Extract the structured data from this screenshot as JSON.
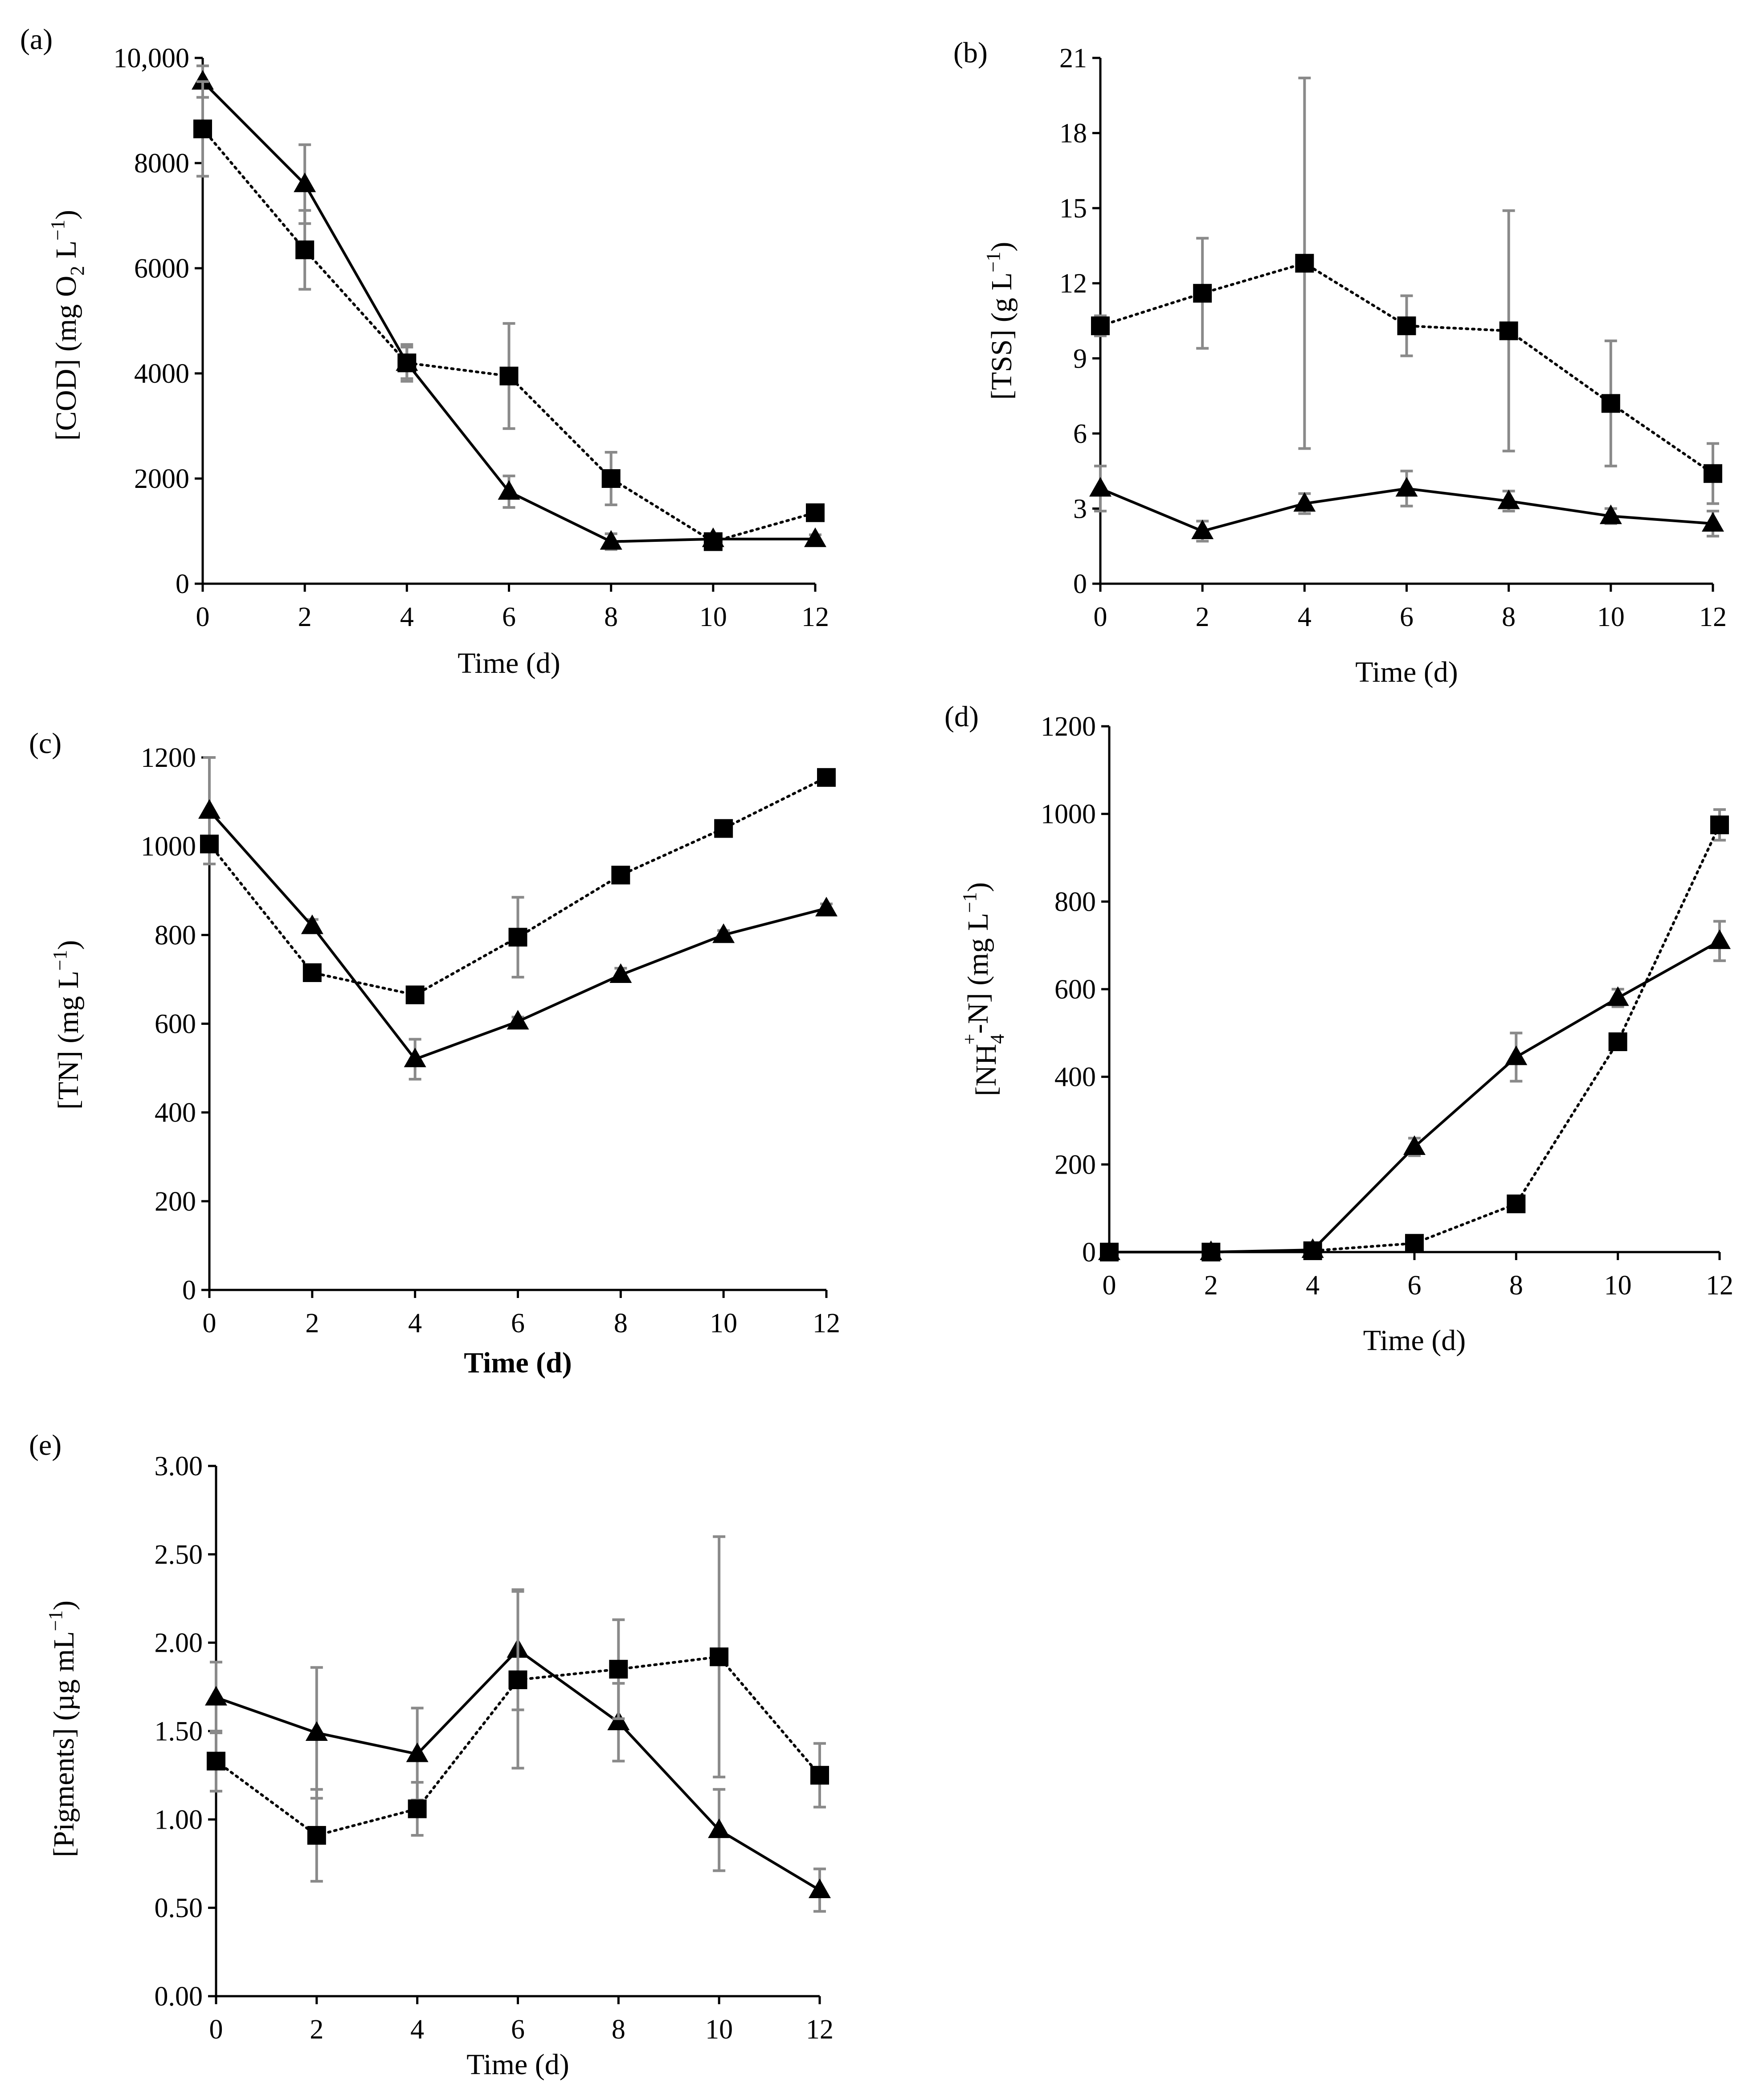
{
  "chart_data": [
    {
      "id": "a",
      "panel_label": "(a)",
      "type": "line",
      "xlabel": "Time (d)",
      "ylabel_parts": [
        "[COD] (mg O",
        "2",
        " L",
        "−1",
        ")"
      ],
      "x": [
        0,
        2,
        4,
        6,
        8,
        10,
        12
      ],
      "xlim": [
        0,
        12
      ],
      "ylim": [
        0,
        10000
      ],
      "yticks": [
        0,
        2000,
        4000,
        6000,
        8000,
        10000
      ],
      "ytick_labels": [
        "0",
        "2000",
        "4000",
        "6000",
        "8000",
        "10,000"
      ],
      "xtick_labels": [
        "0",
        "2",
        "4",
        "6",
        "8",
        "10",
        "12"
      ],
      "series": [
        {
          "name": "triangle",
          "marker": "triangle",
          "line": "solid",
          "values": [
            9550,
            7600,
            4200,
            1750,
            800,
            850,
            850
          ],
          "errors": [
            300,
            750,
            300,
            300,
            150,
            80,
            80
          ]
        },
        {
          "name": "square",
          "marker": "square",
          "line": "dotted",
          "values": [
            8650,
            6350,
            4200,
            3950,
            2000,
            800,
            1350
          ],
          "errors": [
            900,
            750,
            350,
            1000,
            500,
            100,
            100
          ]
        }
      ]
    },
    {
      "id": "b",
      "panel_label": "(b)",
      "type": "line",
      "xlabel": "Time (d)",
      "ylabel_parts": [
        "[TSS] (g L",
        "−1",
        ")"
      ],
      "x": [
        0,
        2,
        4,
        6,
        8,
        10,
        12
      ],
      "xlim": [
        0,
        12
      ],
      "ylim": [
        0,
        21
      ],
      "yticks": [
        0,
        3,
        6,
        9,
        12,
        15,
        18,
        21
      ],
      "ytick_labels": [
        "0",
        "3",
        "6",
        "9",
        "12",
        "15",
        "18",
        "21"
      ],
      "xtick_labels": [
        "0",
        "2",
        "4",
        "6",
        "8",
        "10",
        "12"
      ],
      "series": [
        {
          "name": "triangle",
          "marker": "triangle",
          "line": "solid",
          "values": [
            3.8,
            2.1,
            3.2,
            3.8,
            3.3,
            2.7,
            2.4
          ],
          "errors": [
            0.9,
            0.4,
            0.4,
            0.7,
            0.4,
            0.3,
            0.5
          ]
        },
        {
          "name": "square",
          "marker": "square",
          "line": "dotted",
          "values": [
            10.3,
            11.6,
            12.8,
            10.3,
            10.1,
            7.2,
            4.4
          ],
          "errors": [
            0.4,
            2.2,
            7.4,
            1.2,
            4.8,
            2.5,
            1.2
          ]
        }
      ]
    },
    {
      "id": "c",
      "panel_label": "(c)",
      "type": "line",
      "xlabel": "Time (d)",
      "xlabel_bold": true,
      "ylabel_parts": [
        "[TN] (mg L",
        "−1",
        ")"
      ],
      "x": [
        0,
        2,
        4,
        6,
        8,
        10,
        12
      ],
      "xlim": [
        0,
        12
      ],
      "ylim": [
        0,
        1200
      ],
      "yticks": [
        0,
        200,
        400,
        600,
        800,
        1000,
        1200
      ],
      "ytick_labels": [
        "0",
        "200",
        "400",
        "600",
        "800",
        "1000",
        "1200"
      ],
      "xtick_labels": [
        "0",
        "2",
        "4",
        "6",
        "8",
        "10",
        "12"
      ],
      "series": [
        {
          "name": "triangle",
          "marker": "triangle",
          "line": "solid",
          "values": [
            1080,
            820,
            520,
            605,
            710,
            800,
            860
          ],
          "errors": [
            120,
            15,
            45,
            10,
            15,
            10,
            10
          ]
        },
        {
          "name": "square",
          "marker": "square",
          "line": "dotted",
          "values": [
            1005,
            715,
            665,
            795,
            935,
            1040,
            1155
          ],
          "errors": [
            15,
            10,
            10,
            90,
            10,
            10,
            10
          ]
        }
      ]
    },
    {
      "id": "d",
      "panel_label": "(d)",
      "type": "line",
      "xlabel": "Time (d)",
      "ylabel_parts": [
        "[NH",
        "4",
        "+",
        "-N] (mg L",
        "−1",
        ")"
      ],
      "x": [
        0,
        2,
        4,
        6,
        8,
        10,
        12
      ],
      "xlim": [
        0,
        12
      ],
      "ylim": [
        0,
        1200
      ],
      "yticks": [
        0,
        200,
        400,
        600,
        800,
        1000,
        1200
      ],
      "ytick_labels": [
        "0",
        "200",
        "400",
        "600",
        "800",
        "1000",
        "1200"
      ],
      "xtick_labels": [
        "0",
        "2",
        "4",
        "6",
        "8",
        "10",
        "12"
      ],
      "series": [
        {
          "name": "triangle",
          "marker": "triangle",
          "line": "solid",
          "values": [
            0,
            0,
            5,
            240,
            445,
            580,
            710
          ],
          "errors": [
            0,
            0,
            5,
            20,
            55,
            20,
            45
          ]
        },
        {
          "name": "square",
          "marker": "square",
          "line": "dotted",
          "values": [
            0,
            0,
            3,
            20,
            110,
            480,
            975
          ],
          "errors": [
            0,
            0,
            3,
            5,
            10,
            10,
            35
          ]
        }
      ]
    },
    {
      "id": "e",
      "panel_label": "(e)",
      "type": "line",
      "xlabel": "Time (d)",
      "ylabel_parts": [
        "[Pigments] (µg mL",
        "−1",
        ")"
      ],
      "x": [
        0,
        2,
        4,
        6,
        8,
        10,
        12
      ],
      "xlim": [
        0,
        12
      ],
      "ylim": [
        0,
        3
      ],
      "yticks": [
        0,
        0.5,
        1,
        1.5,
        2,
        2.5,
        3
      ],
      "ytick_labels": [
        "0.00",
        "0.50",
        "1.00",
        "1.50",
        "2.00",
        "2.50",
        "3.00"
      ],
      "xtick_labels": [
        "0",
        "2",
        "4",
        "6",
        "8",
        "10",
        "12"
      ],
      "series": [
        {
          "name": "triangle",
          "marker": "triangle",
          "line": "solid",
          "values": [
            1.69,
            1.49,
            1.37,
            1.96,
            1.55,
            0.94,
            0.6
          ],
          "errors": [
            0.2,
            0.37,
            0.26,
            0.34,
            0.22,
            0.23,
            0.12
          ]
        },
        {
          "name": "square",
          "marker": "square",
          "line": "dotted",
          "values": [
            1.33,
            0.91,
            1.06,
            1.79,
            1.85,
            1.92,
            1.25
          ],
          "errors": [
            0.17,
            0.26,
            0.15,
            0.5,
            0.28,
            0.68,
            0.18
          ]
        }
      ]
    }
  ]
}
